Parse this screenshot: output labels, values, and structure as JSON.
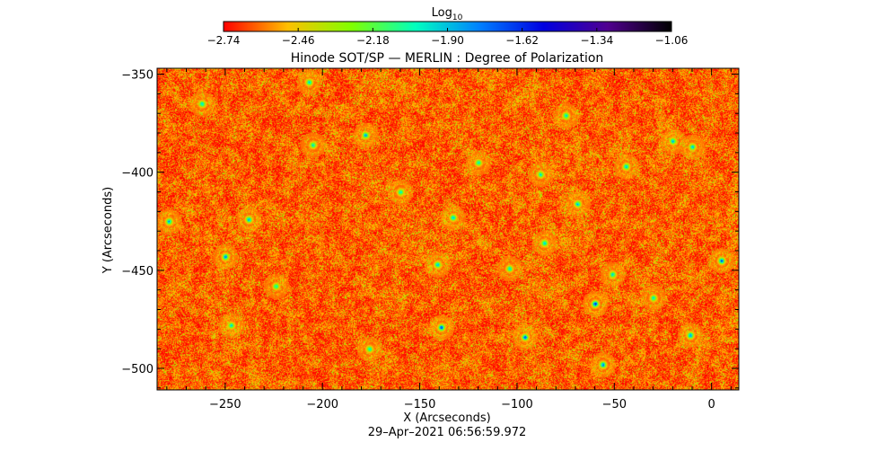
{
  "chart_data": {
    "type": "heatmap",
    "title": "Hinode SOT/SP — MERLIN : Degree of Polarization",
    "xlabel": "X (Arcseconds)",
    "ylabel": "Y (Arcseconds)",
    "timestamp": "29–Apr–2021 06:56:59.972",
    "xlim": [
      -285,
      14
    ],
    "ylim": [
      -511,
      -347
    ],
    "x_ticks": [
      {
        "value": -250,
        "label": "−250"
      },
      {
        "value": -200,
        "label": "−200"
      },
      {
        "value": -150,
        "label": "−150"
      },
      {
        "value": -100,
        "label": "−100"
      },
      {
        "value": -50,
        "label": "−50"
      },
      {
        "value": 0,
        "label": "0"
      }
    ],
    "y_ticks": [
      {
        "value": -350,
        "label": "−350"
      },
      {
        "value": -400,
        "label": "−400"
      },
      {
        "value": -450,
        "label": "−450"
      },
      {
        "value": -500,
        "label": "−500"
      }
    ],
    "colorbar": {
      "title_base": "Log",
      "title_sub": "10",
      "min": -2.74,
      "max": -1.06,
      "colormap": "rainbow",
      "stop_colors": [
        "#ff0000",
        "#ffbf00",
        "#80ff00",
        "#00ffbf",
        "#0080ff",
        "#0000e0",
        "#500090",
        "#000000"
      ],
      "tick_labels": [
        "−2.74",
        "−2.46",
        "−2.18",
        "−1.90",
        "−1.62",
        "−1.34",
        "−1.06"
      ]
    },
    "field": {
      "typical_value": -2.62,
      "bright_patches": [
        {
          "x": -96,
          "y": -484,
          "value": -1.55
        },
        {
          "x": -139,
          "y": -479,
          "value": -1.5
        },
        {
          "x": -60,
          "y": -467,
          "value": -1.45
        },
        {
          "x": -56,
          "y": -498,
          "value": -1.6
        },
        {
          "x": -11,
          "y": -483,
          "value": -1.6
        },
        {
          "x": 5,
          "y": -445,
          "value": -1.55
        },
        {
          "x": -250,
          "y": -443,
          "value": -1.65
        },
        {
          "x": -279,
          "y": -425,
          "value": -1.7
        },
        {
          "x": -238,
          "y": -424,
          "value": -1.7
        },
        {
          "x": -178,
          "y": -381,
          "value": -1.7
        },
        {
          "x": -141,
          "y": -447,
          "value": -1.75
        },
        {
          "x": -133,
          "y": -423,
          "value": -1.75
        },
        {
          "x": -207,
          "y": -354,
          "value": -1.8
        },
        {
          "x": -44,
          "y": -397,
          "value": -1.75
        },
        {
          "x": -20,
          "y": -384,
          "value": -1.75
        },
        {
          "x": -10,
          "y": -387,
          "value": -1.75
        },
        {
          "x": -69,
          "y": -416,
          "value": -1.75
        },
        {
          "x": -86,
          "y": -436,
          "value": -1.8
        },
        {
          "x": -51,
          "y": -452,
          "value": -1.8
        },
        {
          "x": -262,
          "y": -365,
          "value": -1.8
        },
        {
          "x": -75,
          "y": -371,
          "value": -1.8
        },
        {
          "x": -120,
          "y": -395,
          "value": -1.85
        },
        {
          "x": -176,
          "y": -490,
          "value": -1.85
        },
        {
          "x": -247,
          "y": -478,
          "value": -1.85
        },
        {
          "x": -104,
          "y": -449,
          "value": -1.85
        },
        {
          "x": -205,
          "y": -386,
          "value": -1.85
        },
        {
          "x": -30,
          "y": -464,
          "value": -1.85
        },
        {
          "x": -160,
          "y": -410,
          "value": -1.85
        },
        {
          "x": -88,
          "y": -401,
          "value": -1.85
        },
        {
          "x": -224,
          "y": -458,
          "value": -1.9
        }
      ]
    }
  }
}
